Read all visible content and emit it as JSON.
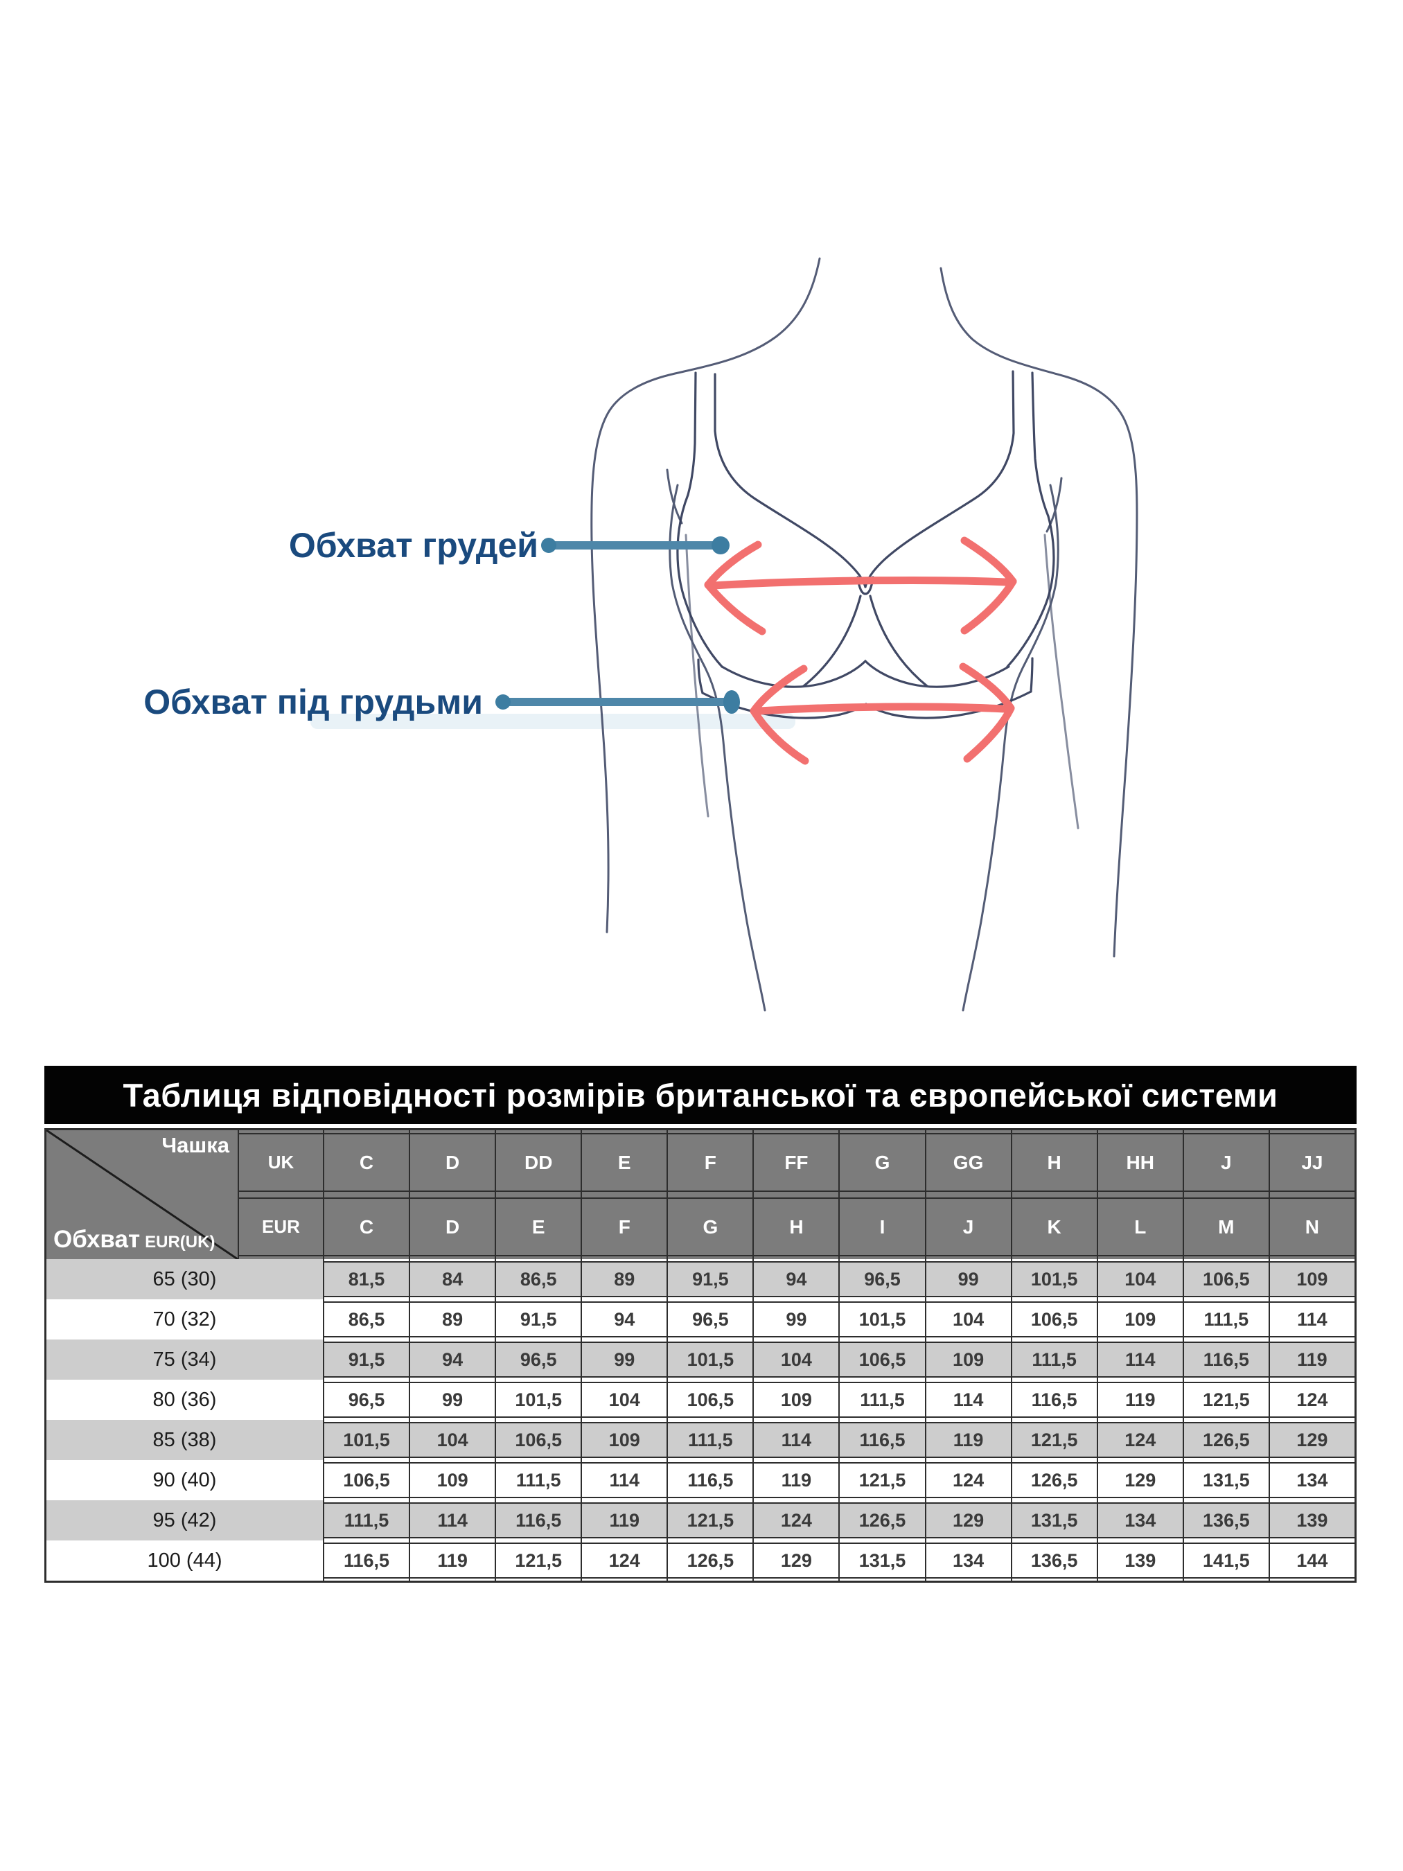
{
  "diagram": {
    "bust_label": "Обхват грудей",
    "underbust_label": "Обхват під грудьми",
    "bust_arrow_icon": "double-headed-arrow",
    "underbust_arrow_icon": "double-headed-arrow",
    "colors": {
      "label_text": "#1a4a7e",
      "pointer_blue": "#4e87a9",
      "pointer_dot": "#3d7da1",
      "arrow_red": "#f2706f",
      "sketch_line": "#3c4663"
    }
  },
  "table": {
    "title": "Таблиця відповідності розмірів британської та європейської системи",
    "corner": {
      "top_right": "Чашка",
      "bottom_left": "Обхват",
      "bottom_left_small": "EUR(UK)"
    },
    "row_header_units": [
      "UK",
      "EUR"
    ],
    "uk_cups": [
      "C",
      "D",
      "DD",
      "E",
      "F",
      "FF",
      "G",
      "GG",
      "H",
      "HH",
      "J",
      "JJ"
    ],
    "eur_cups": [
      "C",
      "D",
      "E",
      "F",
      "G",
      "H",
      "I",
      "J",
      "K",
      "L",
      "M",
      "N"
    ],
    "rows": [
      {
        "band": "65 (30)",
        "values": [
          "81,5",
          "84",
          "86,5",
          "89",
          "91,5",
          "94",
          "96,5",
          "99",
          "101,5",
          "104",
          "106,5",
          "109"
        ]
      },
      {
        "band": "70 (32)",
        "values": [
          "86,5",
          "89",
          "91,5",
          "94",
          "96,5",
          "99",
          "101,5",
          "104",
          "106,5",
          "109",
          "111,5",
          "114"
        ]
      },
      {
        "band": "75 (34)",
        "values": [
          "91,5",
          "94",
          "96,5",
          "99",
          "101,5",
          "104",
          "106,5",
          "109",
          "111,5",
          "114",
          "116,5",
          "119"
        ]
      },
      {
        "band": "80 (36)",
        "values": [
          "96,5",
          "99",
          "101,5",
          "104",
          "106,5",
          "109",
          "111,5",
          "114",
          "116,5",
          "119",
          "121,5",
          "124"
        ]
      },
      {
        "band": "85 (38)",
        "values": [
          "101,5",
          "104",
          "106,5",
          "109",
          "111,5",
          "114",
          "116,5",
          "119",
          "121,5",
          "124",
          "126,5",
          "129"
        ]
      },
      {
        "band": "90 (40)",
        "values": [
          "106,5",
          "109",
          "111,5",
          "114",
          "116,5",
          "119",
          "121,5",
          "124",
          "126,5",
          "129",
          "131,5",
          "134"
        ]
      },
      {
        "band": "95 (42)",
        "values": [
          "111,5",
          "114",
          "116,5",
          "119",
          "121,5",
          "124",
          "126,5",
          "129",
          "131,5",
          "134",
          "136,5",
          "139"
        ]
      },
      {
        "band": "100 (44)",
        "values": [
          "116,5",
          "119",
          "121,5",
          "124",
          "126,5",
          "129",
          "131,5",
          "134",
          "136,5",
          "139",
          "141,5",
          "144"
        ]
      }
    ],
    "colors": {
      "title_bg": "#030303",
      "header_bg": "#7c7c7c",
      "stripe_bg": "#cdcdcd",
      "border": "#2d2d2d"
    }
  }
}
